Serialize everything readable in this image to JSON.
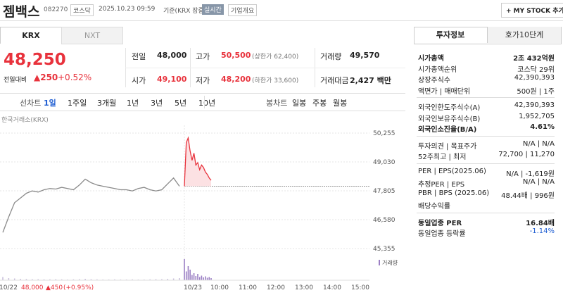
{
  "header": {
    "name": "젬백스",
    "code": "082270",
    "market": "코스닥",
    "datetime": "2025.10.23 09:59",
    "basis": "기준(KRX 장중)",
    "realtime": "실시간",
    "company": "기업개요",
    "mystock": "+ MY STOCK 추가"
  },
  "market_tabs": [
    "KRX",
    "NXT"
  ],
  "price": {
    "current": "48,250",
    "change_label": "전일대비",
    "change": "▲250",
    "rate": "+0.52%"
  },
  "quotes": [
    [
      {
        "label": "전일",
        "value": "48,000"
      },
      {
        "label": "고가",
        "value": "50,500",
        "note": "(상한가 62,400)"
      },
      {
        "label": "거래량",
        "value": "49,570"
      }
    ],
    [
      {
        "label": "시가",
        "value": "49,100"
      },
      {
        "label": "저가",
        "value": "48,200",
        "note": "(하한가 33,600)"
      },
      {
        "label": "거래대금",
        "value": "2,427 백만"
      }
    ]
  ],
  "period": {
    "line_label": "선차트",
    "line_tabs": [
      "1일",
      "1주일",
      "3개월",
      "1년",
      "3년",
      "5년",
      "10년"
    ],
    "candle_label": "봉차트",
    "candle_tabs": [
      "일봉",
      "주봉",
      "월봉"
    ]
  },
  "chart": {
    "type": "line",
    "source": "한국거래소(KRX)",
    "ylim": [
      45355,
      50255
    ],
    "yticks": [
      {
        "value": 50255,
        "label": "50,255"
      },
      {
        "value": 49030,
        "label": "49,030"
      },
      {
        "value": 47805,
        "label": "47,805"
      },
      {
        "value": 46580,
        "label": "46,580"
      },
      {
        "value": 45355,
        "label": "45,355"
      }
    ],
    "reference": 48000,
    "xticks": [
      "10/22",
      "10/23",
      "10:00",
      "11:00",
      "12:00",
      "13:00",
      "14:00",
      "15:00"
    ],
    "series": [
      {
        "color": "#8a8a8a",
        "values": [
          46040,
          46700,
          47300,
          47500,
          47700,
          47800,
          47750,
          47850,
          47900,
          47880,
          47950,
          47900,
          47850,
          48050,
          48300,
          48150,
          48050,
          48000,
          47950,
          47900,
          47850,
          47850,
          47800,
          47900,
          47950,
          47850,
          47800,
          47850,
          48100,
          48350,
          48000
        ],
        "volumes": [
          900,
          600,
          500,
          400,
          350,
          300,
          300,
          250,
          250,
          300,
          250,
          200,
          250,
          300,
          400,
          300,
          250,
          200,
          200,
          250,
          200,
          200,
          250,
          200,
          200,
          250,
          300,
          300,
          400,
          500,
          600
        ]
      },
      {
        "color": "#e8323c",
        "values": [
          48000,
          49850,
          50050,
          49500,
          49100,
          49400,
          48900,
          49000,
          48700,
          48900,
          48800,
          48600,
          48500,
          48350,
          48250
        ],
        "volumes": [
          6000,
          2500,
          4000,
          3000,
          1500,
          2000,
          1200,
          1800,
          900,
          1300,
          800,
          1100,
          700,
          900,
          600
        ]
      }
    ],
    "volume_legend": "거래량",
    "footer": {
      "date": "10/22",
      "price": "48,000",
      "change": "▲450",
      "rate": "(+0.95%)"
    }
  },
  "info": {
    "tabs": [
      "투자정보",
      "호가10단계"
    ],
    "sections": [
      [
        {
          "label": "시가총액",
          "value": "2조 432억원",
          "bold": true
        },
        {
          "label": "시가총액순위",
          "value": "코스닥 29위"
        },
        {
          "label": "상장주식수",
          "value": "42,390,393"
        },
        {
          "label": "액면가 | 매매단위",
          "value": "500원 | 1주"
        }
      ],
      [
        {
          "label": "외국인한도주식수(A)",
          "value": "42,390,393"
        },
        {
          "label": "외국인보유주식수(B)",
          "value": "1,952,705"
        },
        {
          "label": "외국인소진율(B/A)",
          "value": "4.61%",
          "bold": true
        }
      ],
      [
        {
          "label": "투자의견 | 목표주가",
          "value": "N/A | N/A"
        },
        {
          "label": "52주최고 | 최저",
          "value": "72,700 | 11,270"
        }
      ],
      [
        {
          "label": "PER | EPS(2025.06)",
          "value": "N/A | -1,619원"
        },
        {
          "label": "추정PER | EPS",
          "value": "N/A | N/A"
        },
        {
          "label": "PBR | BPS (2025.06)",
          "value": "48.44배 | 996원"
        },
        {
          "label": "배당수익률",
          "value": ""
        }
      ],
      [
        {
          "label": "동일업종 PER",
          "value": "16.84배",
          "bold": true
        },
        {
          "label": "동일업종 등락률",
          "value": "-1.14%",
          "color": "#1e5dd2"
        }
      ]
    ]
  }
}
